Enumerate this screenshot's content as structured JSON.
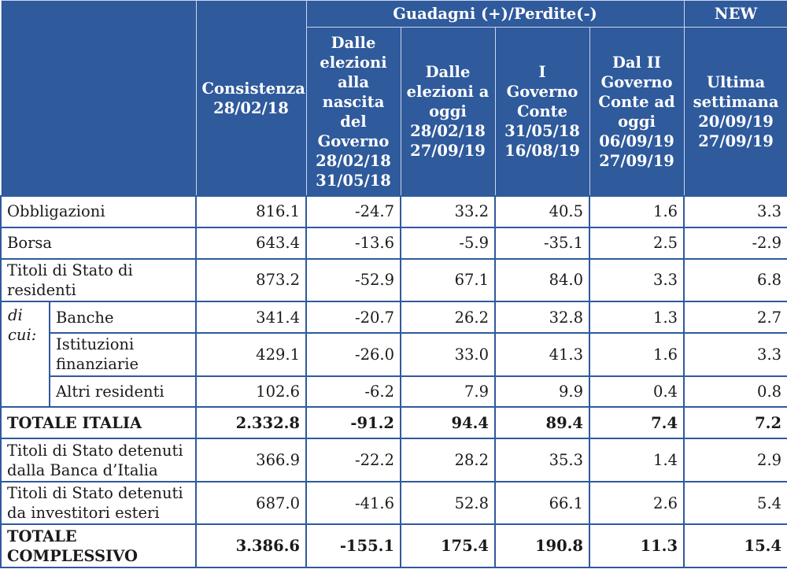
{
  "header": {
    "group_gain_loss": "Guadagni (+)/Perdite(-)",
    "group_new": "NEW",
    "columns": [
      "Consistenza 28/02/18",
      "Dalle elezioni alla nascita del Governo 28/02/18 31/05/18",
      "Dalle elezioni a oggi 28/02/18 27/09/19",
      "I Governo Conte 31/05/18 16/08/19",
      "Dal II Governo Conte ad oggi 06/09/19 27/09/19",
      "Ultima settimana 20/09/19 27/09/19"
    ]
  },
  "sub_label": "di cui:",
  "rows": [
    {
      "label": "Obbligazioni",
      "values": [
        "816.1",
        "-24.7",
        "33.2",
        "40.5",
        "1.6",
        "3.3"
      ]
    },
    {
      "label": "Borsa",
      "values": [
        "643.4",
        "-13.6",
        "-5.9",
        "-35.1",
        "2.5",
        "-2.9"
      ]
    },
    {
      "label": "Titoli di Stato di residenti",
      "values": [
        "873.2",
        "-52.9",
        "67.1",
        "84.0",
        "3.3",
        "6.8"
      ]
    },
    {
      "label": "Banche",
      "values": [
        "341.4",
        "-20.7",
        "26.2",
        "32.8",
        "1.3",
        "2.7"
      ]
    },
    {
      "label": "Istituzioni finanziarie",
      "values": [
        "429.1",
        "-26.0",
        "33.0",
        "41.3",
        "1.6",
        "3.3"
      ]
    },
    {
      "label": "Altri residenti",
      "values": [
        "102.6",
        "-6.2",
        "7.9",
        "9.9",
        "0.4",
        "0.8"
      ]
    },
    {
      "label": "TOTALE ITALIA",
      "values": [
        "2.332.8",
        "-91.2",
        "94.4",
        "89.4",
        "7.4",
        "7.2"
      ]
    },
    {
      "label": "Titoli di Stato detenuti dalla Banca d’Italia",
      "values": [
        "366.9",
        "-22.2",
        "28.2",
        "35.3",
        "1.4",
        "2.9"
      ]
    },
    {
      "label": "Titoli di Stato detenuti da investitori esteri",
      "values": [
        "687.0",
        "-41.6",
        "52.8",
        "66.1",
        "2.6",
        "5.4"
      ]
    },
    {
      "label": "TOTALE COMPLESSIVO",
      "values": [
        "3.386.6",
        "-155.1",
        "175.4",
        "190.8",
        "11.3",
        "15.4"
      ]
    }
  ]
}
